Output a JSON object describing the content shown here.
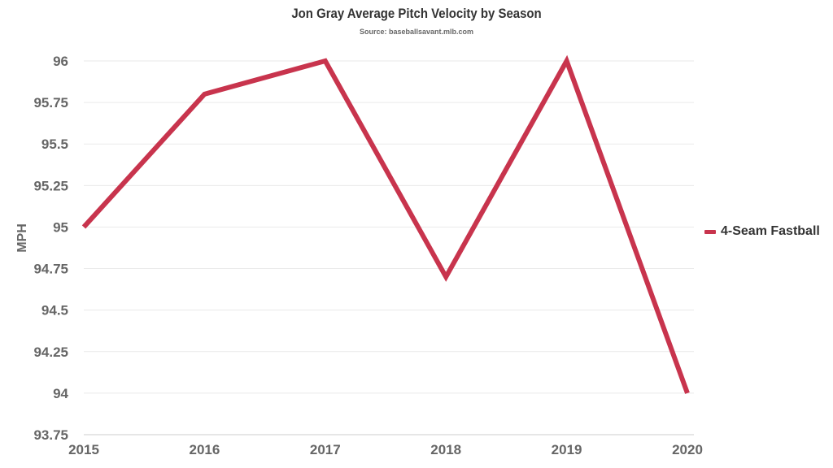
{
  "chart_data": {
    "type": "line",
    "title": "Jon Gray Average Pitch Velocity by Season",
    "subtitle": "Source: baseballsavant.mlb.com",
    "xlabel": "",
    "ylabel": "MPH",
    "x": [
      "2015",
      "2016",
      "2017",
      "2018",
      "2019",
      "2020"
    ],
    "ylim": [
      93.75,
      96
    ],
    "yticks": [
      93.75,
      94,
      94.25,
      94.5,
      94.75,
      95,
      95.25,
      95.5,
      95.75,
      96
    ],
    "ytick_labels": [
      "93.75",
      "94",
      "94.25",
      "94.5",
      "94.75",
      "95",
      "95.25",
      "95.5",
      "95.75",
      "96"
    ],
    "grid": true,
    "legend_position": "right",
    "series": [
      {
        "name": "4-Seam Fastball",
        "color": "#c8344d",
        "values": [
          95.0,
          95.8,
          96.0,
          94.7,
          96.0,
          94.0
        ]
      }
    ]
  }
}
